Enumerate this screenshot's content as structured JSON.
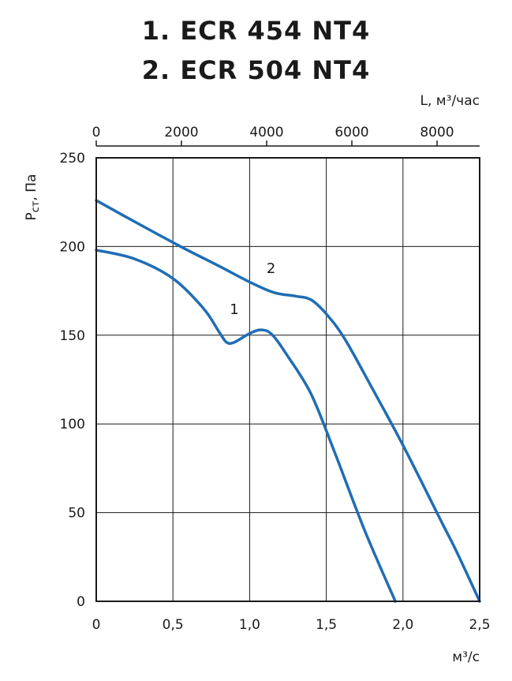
{
  "titles": [
    "1. ECR 454 NT4",
    "2. ECR 504 NT4"
  ],
  "chart_data": {
    "type": "line",
    "xlabel": "м³/с",
    "ylabel": "Рст, Па",
    "xlim": [
      0,
      2.5
    ],
    "ylim": [
      0,
      250
    ],
    "x_ticks": [
      0,
      0.5,
      1.0,
      1.5,
      2.0,
      2.5
    ],
    "x_tick_labels": [
      "0",
      "0,5",
      "1,0",
      "1,5",
      "2,0",
      "2,5"
    ],
    "y_ticks": [
      0,
      50,
      100,
      150,
      200,
      250
    ],
    "y_tick_labels": [
      "0",
      "50",
      "100",
      "150",
      "200",
      "250"
    ],
    "x2label": "L, м³/час",
    "x2lim": [
      0,
      9000
    ],
    "x2_ticks": [
      0,
      2000,
      4000,
      6000,
      8000
    ],
    "x2_tick_labels": [
      "0",
      "2000",
      "4000",
      "6000",
      "8000"
    ],
    "grid": true,
    "line_color": "#1f6db5",
    "series": [
      {
        "name": "1",
        "points": [
          [
            0,
            198
          ],
          [
            0.25,
            193
          ],
          [
            0.5,
            182
          ],
          [
            0.7,
            165
          ],
          [
            0.8,
            152
          ],
          [
            0.85,
            146
          ],
          [
            0.9,
            146
          ],
          [
            1.0,
            151
          ],
          [
            1.08,
            153
          ],
          [
            1.15,
            150
          ],
          [
            1.25,
            138
          ],
          [
            1.4,
            117
          ],
          [
            1.55,
            85
          ],
          [
            1.75,
            40
          ],
          [
            1.95,
            0
          ]
        ]
      },
      {
        "name": "2",
        "points": [
          [
            0,
            226
          ],
          [
            0.25,
            214
          ],
          [
            0.55,
            200
          ],
          [
            0.8,
            189
          ],
          [
            1.0,
            180
          ],
          [
            1.16,
            174
          ],
          [
            1.3,
            172
          ],
          [
            1.4,
            170
          ],
          [
            1.5,
            162
          ],
          [
            1.62,
            148
          ],
          [
            1.8,
            120
          ],
          [
            2.0,
            88
          ],
          [
            2.25,
            45
          ],
          [
            2.35,
            28
          ],
          [
            2.5,
            0
          ]
        ]
      }
    ]
  }
}
